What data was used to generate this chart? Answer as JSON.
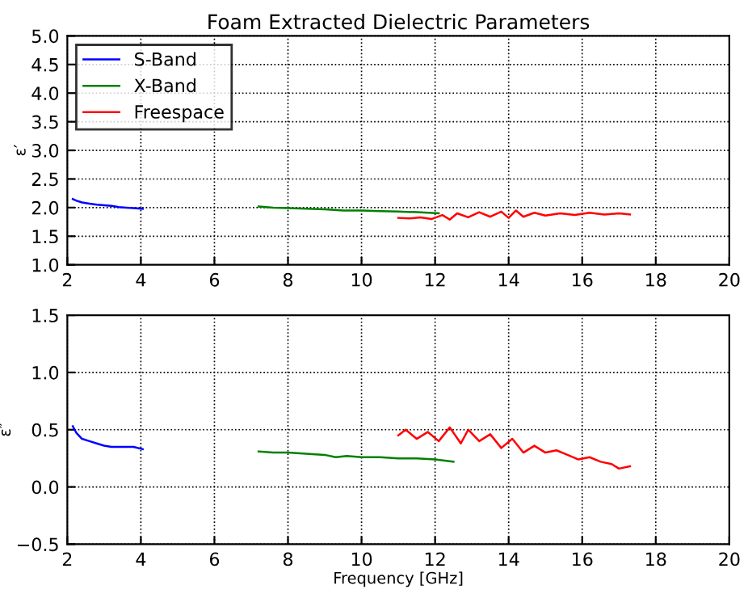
{
  "chart_data": [
    {
      "type": "line",
      "title": "Foam Extracted Dielectric Parameters",
      "ylabel": "ε′",
      "xlim": [
        2,
        20
      ],
      "xticks": [
        2,
        4,
        6,
        8,
        10,
        12,
        14,
        16,
        18,
        20
      ],
      "ylim": [
        1.0,
        5.0
      ],
      "yticks": [
        {
          "value": 1.0,
          "label": "1.0"
        },
        {
          "value": 1.5,
          "label": "1.5"
        },
        {
          "value": 2.0,
          "label": "2.0"
        },
        {
          "value": 2.5,
          "label": "2.5"
        },
        {
          "value": 3.0,
          "label": "3.0"
        },
        {
          "value": 3.5,
          "label": "3.5"
        },
        {
          "value": 4.0,
          "label": "4.0"
        },
        {
          "value": 4.5,
          "label": "4.5"
        },
        {
          "value": 5.0,
          "label": "5.0"
        }
      ],
      "grid": true,
      "legend": "top left",
      "series": [
        {
          "name": "S-Band",
          "color": "#0000ff",
          "x": [
            2.15,
            2.25,
            2.4,
            2.6,
            2.8,
            3.0,
            3.2,
            3.4,
            3.6,
            3.8,
            4.05
          ],
          "values": [
            2.15,
            2.12,
            2.09,
            2.07,
            2.05,
            2.04,
            2.03,
            2.01,
            2.0,
            1.99,
            1.98
          ]
        },
        {
          "name": "X-Band",
          "color": "#008000",
          "x": [
            7.2,
            7.6,
            8.0,
            8.5,
            9.0,
            9.5,
            10.0,
            10.5,
            11.0,
            11.5,
            12.1
          ],
          "values": [
            2.02,
            2.0,
            1.99,
            1.98,
            1.97,
            1.95,
            1.95,
            1.94,
            1.93,
            1.92,
            1.9
          ]
        },
        {
          "name": "Freespace",
          "color": "#ff0000",
          "x": [
            11.0,
            11.3,
            11.6,
            11.9,
            12.2,
            12.4,
            12.6,
            12.9,
            13.2,
            13.5,
            13.8,
            14.0,
            14.2,
            14.4,
            14.7,
            15.0,
            15.4,
            15.8,
            16.2,
            16.6,
            17.0,
            17.3
          ],
          "values": [
            1.82,
            1.81,
            1.83,
            1.8,
            1.87,
            1.79,
            1.9,
            1.83,
            1.92,
            1.84,
            1.93,
            1.82,
            1.95,
            1.84,
            1.91,
            1.86,
            1.9,
            1.87,
            1.91,
            1.88,
            1.9,
            1.88
          ]
        }
      ]
    },
    {
      "type": "line",
      "xlabel": "Frequency [GHz]",
      "ylabel": "ε″",
      "xlim": [
        2,
        20
      ],
      "xticks": [
        2,
        4,
        6,
        8,
        10,
        12,
        14,
        16,
        18,
        20
      ],
      "ylim": [
        -0.5,
        1.5
      ],
      "yticks": [
        {
          "value": -0.5,
          "label": "−0.5"
        },
        {
          "value": 0.0,
          "label": "0.0"
        },
        {
          "value": 0.5,
          "label": "0.5"
        },
        {
          "value": 1.0,
          "label": "1.0"
        },
        {
          "value": 1.5,
          "label": "1.5"
        }
      ],
      "grid": true,
      "series": [
        {
          "color": "#0000ff",
          "x": [
            2.15,
            2.25,
            2.4,
            2.6,
            2.8,
            3.0,
            3.2,
            3.4,
            3.6,
            3.8,
            4.05
          ],
          "values": [
            0.53,
            0.47,
            0.42,
            0.4,
            0.38,
            0.36,
            0.35,
            0.35,
            0.35,
            0.35,
            0.33
          ]
        },
        {
          "color": "#008000",
          "x": [
            7.2,
            7.6,
            8.0,
            8.5,
            9.0,
            9.3,
            9.6,
            10.0,
            10.5,
            11.0,
            11.5,
            12.0,
            12.5
          ],
          "values": [
            0.31,
            0.3,
            0.3,
            0.29,
            0.28,
            0.26,
            0.27,
            0.26,
            0.26,
            0.25,
            0.25,
            0.24,
            0.22
          ]
        },
        {
          "color": "#ff0000",
          "x": [
            11.0,
            11.2,
            11.5,
            11.8,
            12.1,
            12.4,
            12.7,
            12.9,
            13.2,
            13.5,
            13.8,
            14.1,
            14.4,
            14.7,
            15.0,
            15.3,
            15.6,
            15.9,
            16.2,
            16.5,
            16.8,
            17.0,
            17.3
          ],
          "values": [
            0.45,
            0.5,
            0.42,
            0.48,
            0.4,
            0.52,
            0.38,
            0.5,
            0.4,
            0.46,
            0.34,
            0.42,
            0.3,
            0.36,
            0.3,
            0.32,
            0.28,
            0.24,
            0.26,
            0.22,
            0.2,
            0.16,
            0.18
          ]
        }
      ]
    }
  ]
}
